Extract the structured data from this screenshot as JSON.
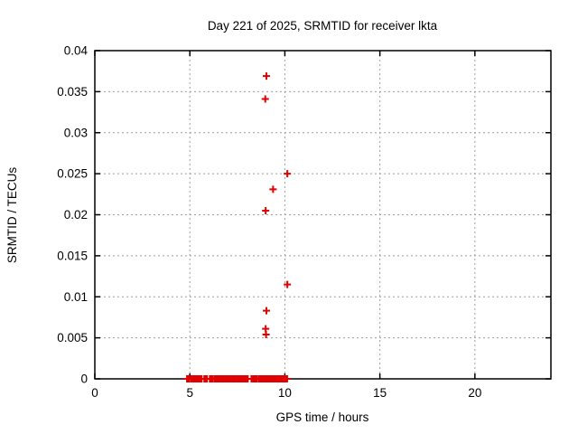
{
  "chart_data": {
    "type": "scatter",
    "title": "Day 221 of 2025, SRMTID for receiver lkta",
    "xlabel": "GPS time / hours",
    "ylabel": "SRMTID / TECUs",
    "xlim": [
      0,
      24
    ],
    "ylim": [
      0,
      0.04
    ],
    "xticks": [
      {
        "value": 0,
        "label": "0"
      },
      {
        "value": 5,
        "label": "5"
      },
      {
        "value": 10,
        "label": "10"
      },
      {
        "value": 15,
        "label": "15"
      },
      {
        "value": 20,
        "label": "20"
      }
    ],
    "yticks": [
      {
        "value": 0,
        "label": "0"
      },
      {
        "value": 0.005,
        "label": "0.005"
      },
      {
        "value": 0.01,
        "label": "0.01"
      },
      {
        "value": 0.015,
        "label": "0.015"
      },
      {
        "value": 0.02,
        "label": "0.02"
      },
      {
        "value": 0.025,
        "label": "0.025"
      },
      {
        "value": 0.03,
        "label": "0.03"
      },
      {
        "value": 0.035,
        "label": "0.035"
      },
      {
        "value": 0.04,
        "label": "0.04"
      }
    ],
    "grid": true,
    "legend_position": "none",
    "marker": "plus",
    "colors": {
      "marker": "#e00000",
      "grid": "#9c9c9c",
      "axis": "#000000",
      "text": "#000000",
      "background": "#ffffff"
    },
    "series": [
      {
        "name": "SRMTID",
        "points": [
          [
            9.03,
            0.0369
          ],
          [
            8.97,
            0.0341
          ],
          [
            10.13,
            0.025
          ],
          [
            9.38,
            0.0231
          ],
          [
            8.99,
            0.0205
          ],
          [
            10.13,
            0.0115
          ],
          [
            9.03,
            0.0083
          ],
          [
            8.99,
            0.0061
          ],
          [
            9.01,
            0.0054
          ]
        ],
        "zero_value_segments": [
          [
            4.85,
            4.95
          ],
          [
            5.05,
            5.62
          ],
          [
            5.76,
            5.9
          ],
          [
            6.05,
            6.19
          ],
          [
            6.29,
            7.81
          ],
          [
            7.9,
            8.05
          ],
          [
            8.24,
            8.52
          ],
          [
            8.62,
            10.12
          ]
        ]
      }
    ]
  }
}
